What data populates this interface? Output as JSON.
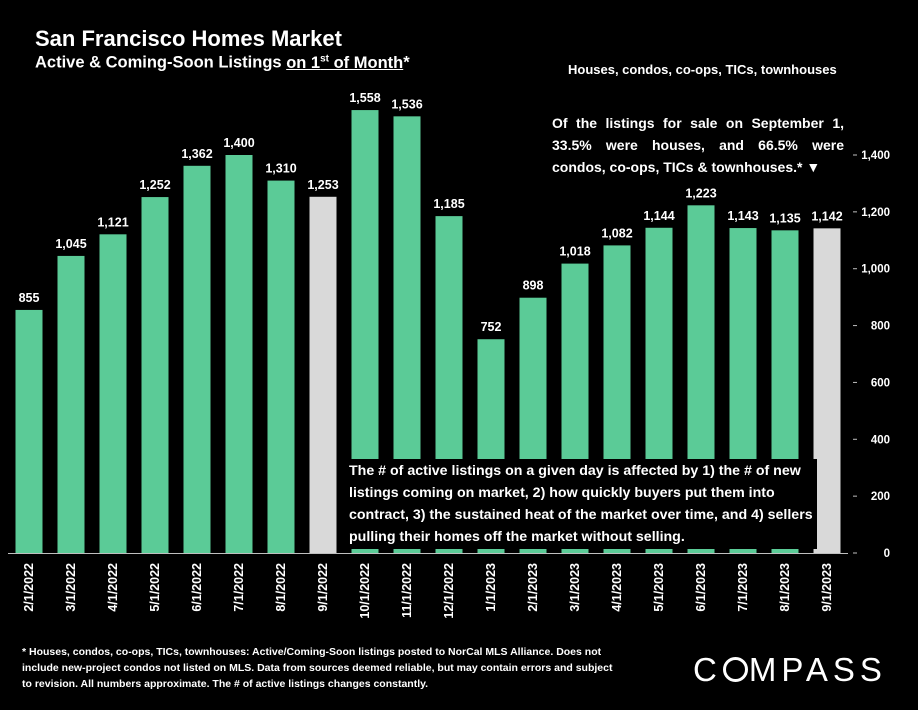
{
  "header": {
    "title": "San Francisco Homes Market",
    "subtitle_pre": "Active & Coming-Soon Listings ",
    "subtitle_underlined_pre": "on 1",
    "subtitle_sup": "st",
    "subtitle_underlined_post": " of Month",
    "subtitle_post": "*",
    "scope": "Houses, condos, co-ops, TICs, townhouses"
  },
  "annotations": {
    "top_note": "Of the listings for sale on September 1, 33.5% were houses, and 66.5% were condos, co-ops, TICs & townhouses.* ▼",
    "middle_note": "The # of active listings on a given day is affected by 1) the # of new listings coming on market, 2) how quickly buyers put them into contract, 3) the sustained heat of the market over time, and 4) sellers pulling their homes off the market without selling."
  },
  "footer": {
    "text": "* Houses, condos, co-ops, TICs, townhouses: Active/Coming-Soon listings posted to NorCal MLS Alliance. Does not include new-project condos not listed on MLS. Data from sources deemed reliable, but may contain errors and subject to revision. All numbers approximate. The # of active listings changes constantly."
  },
  "logo": {
    "text": "COMPASS"
  },
  "colors": {
    "bar": "#5BCB97",
    "highlight": "#D9D9D9",
    "background": "#000000",
    "text": "#FFFFFF"
  },
  "chart_data": {
    "type": "bar",
    "categories": [
      "2/1/2022",
      "3/1/2022",
      "4/1/2022",
      "5/1/2022",
      "6/1/2022",
      "7/1/2022",
      "8/1/2022",
      "9/1/2022",
      "10/1/2022",
      "11/1/2022",
      "12/1/2022",
      "1/1/2023",
      "2/1/2023",
      "3/1/2023",
      "4/1/2023",
      "5/1/2023",
      "6/1/2023",
      "7/1/2023",
      "8/1/2023",
      "9/1/2023"
    ],
    "values": [
      855,
      1045,
      1121,
      1252,
      1362,
      1400,
      1310,
      1253,
      1558,
      1536,
      1185,
      752,
      898,
      1018,
      1082,
      1144,
      1223,
      1143,
      1135,
      1142
    ],
    "data_labels": [
      "855",
      "1,045",
      "1,121",
      "1,252",
      "1,362",
      "1,400",
      "1,310",
      "1,253",
      "1,558",
      "1,536",
      "1,185",
      "752",
      "898",
      "1,018",
      "1,082",
      "1,144",
      "1,223",
      "1,143",
      "1,135",
      "1,142"
    ],
    "highlighted_categories": [
      "9/1/2022",
      "9/1/2023"
    ],
    "yticks": [
      0,
      200,
      400,
      600,
      800,
      1000,
      1200,
      1400
    ],
    "ytick_labels": [
      "0",
      "200",
      "400",
      "600",
      "800",
      "1,000",
      "1,200",
      "1,400"
    ],
    "ylim": [
      0,
      1400
    ],
    "y_axis_side": "right",
    "grid": false,
    "title": "San Francisco Homes Market",
    "xlabel": "",
    "ylabel": ""
  }
}
